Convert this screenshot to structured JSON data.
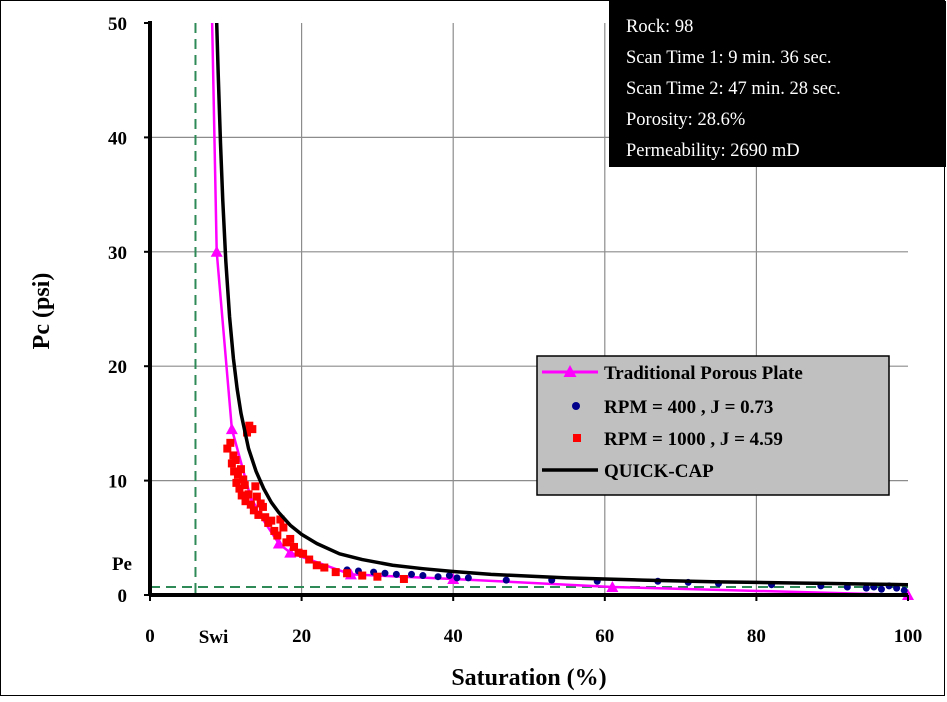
{
  "chart_data": {
    "type": "scatter",
    "xlabel": "Saturation (%)",
    "ylabel": "Pc (psi)",
    "xlim": [
      0,
      100
    ],
    "ylim": [
      0,
      50
    ],
    "x_ticks": [
      0,
      20,
      40,
      60,
      80,
      100
    ],
    "y_ticks": [
      0,
      10,
      20,
      30,
      40,
      50
    ],
    "grid": true,
    "legend_position": "center-right",
    "info_box": [
      "Rock: 98",
      "Scan Time 1: 9 min. 36 sec.",
      "Scan Time 2: 47 min. 28 sec.",
      "Porosity: 28.6%",
      "Permeability: 2690 mD"
    ],
    "annotations": {
      "swi": {
        "label": "Swi",
        "x": 6.0
      },
      "pe": {
        "label": "Pe",
        "y": 0.7
      }
    },
    "series": [
      {
        "name": "Traditional Porous Plate",
        "kind": "line-marker",
        "marker": "triangle",
        "color": "#ff00ff",
        "x": [
          8.2,
          8.8,
          10.8,
          13.5,
          17.0,
          18.5,
          26.5,
          40.0,
          61.0,
          100.0
        ],
        "y": [
          50.0,
          30.0,
          14.5,
          8.0,
          4.5,
          3.7,
          1.8,
          1.4,
          0.7,
          0.0
        ]
      },
      {
        "name": "RPM = 400 , J = 0.73",
        "kind": "scatter",
        "marker": "circle",
        "color": "#00008b",
        "x": [
          26.0,
          27.5,
          29.5,
          31.0,
          32.5,
          34.5,
          36.0,
          38.0,
          39.5,
          40.5,
          42.0,
          47.0,
          53.0,
          59.0,
          67.0,
          71.0,
          75.0,
          82.0,
          88.5,
          92.0,
          94.5,
          95.5,
          96.5,
          97.5,
          98.5,
          99.5
        ],
        "y": [
          2.2,
          2.1,
          2.0,
          1.9,
          1.8,
          1.8,
          1.7,
          1.6,
          1.7,
          1.5,
          1.5,
          1.3,
          1.3,
          1.2,
          1.2,
          1.1,
          1.0,
          0.9,
          0.8,
          0.7,
          0.6,
          0.7,
          0.5,
          0.8,
          0.6,
          0.4
        ]
      },
      {
        "name": "RPM = 1000 , J = 4.59",
        "kind": "scatter",
        "marker": "square",
        "color": "#ff0000",
        "x": [
          10.2,
          10.6,
          10.8,
          11.0,
          11.1,
          11.3,
          11.4,
          11.6,
          11.8,
          12.0,
          12.1,
          12.3,
          12.5,
          12.6,
          12.8,
          13.0,
          13.1,
          13.3,
          13.5,
          13.7,
          13.9,
          14.1,
          14.3,
          14.6,
          14.9,
          15.2,
          15.6,
          16.0,
          16.4,
          16.8,
          17.2,
          17.6,
          18.0,
          18.5,
          19.0,
          19.6,
          20.2,
          21.0,
          22.0,
          23.0,
          24.5,
          26.0,
          28.0,
          30.0,
          33.5
        ],
        "y": [
          12.8,
          13.3,
          11.5,
          12.2,
          10.8,
          11.8,
          9.8,
          10.5,
          9.3,
          11.0,
          8.7,
          10.1,
          9.6,
          8.2,
          14.2,
          8.8,
          14.8,
          7.9,
          14.5,
          7.4,
          9.5,
          8.6,
          7.0,
          8.0,
          7.7,
          6.8,
          6.3,
          6.5,
          5.6,
          5.2,
          6.6,
          5.9,
          4.6,
          4.9,
          4.2,
          3.7,
          3.6,
          3.1,
          2.6,
          2.4,
          2.0,
          1.9,
          1.7,
          1.6,
          1.4
        ]
      },
      {
        "name": "QUICK-CAP",
        "kind": "line",
        "color": "#000000",
        "x": [
          8.8,
          9.0,
          9.3,
          9.6,
          10.0,
          10.5,
          11.0,
          11.5,
          12.0,
          13.0,
          14.0,
          15.0,
          16.0,
          17.0,
          18.5,
          20.0,
          22.0,
          25.0,
          28.0,
          32.0,
          36.0,
          40.0,
          45.0,
          50.0,
          55.0,
          60.0,
          65.0,
          70.0,
          75.0,
          80.0,
          85.0,
          90.0,
          95.0,
          100.0
        ],
        "y": [
          50.0,
          45.5,
          39.5,
          34.5,
          29.2,
          24.3,
          20.7,
          18.0,
          15.9,
          12.8,
          10.8,
          9.3,
          8.1,
          7.2,
          6.1,
          5.3,
          4.5,
          3.6,
          3.1,
          2.6,
          2.3,
          2.05,
          1.8,
          1.65,
          1.5,
          1.4,
          1.3,
          1.22,
          1.15,
          1.1,
          1.05,
          1.0,
          0.95,
          0.9
        ]
      }
    ]
  }
}
